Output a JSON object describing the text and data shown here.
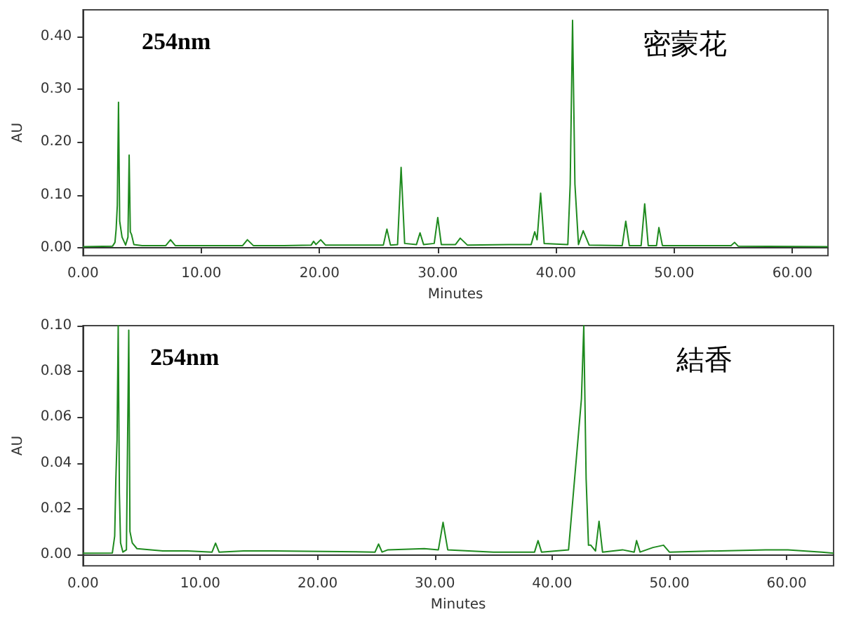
{
  "chart_data": [
    {
      "type": "line",
      "xlabel": "Minutes",
      "ylabel": "AU",
      "annotations": [
        "254nm",
        "密蒙花"
      ],
      "marker": "none",
      "xlim": [
        0,
        63
      ],
      "ylim": [
        -0.015,
        0.45
      ],
      "xticks": [
        {
          "value": 0,
          "label": "0.00"
        },
        {
          "value": 10,
          "label": "10.00"
        },
        {
          "value": 20,
          "label": "20.00"
        },
        {
          "value": 30,
          "label": "30.00"
        },
        {
          "value": 40,
          "label": "40.00"
        },
        {
          "value": 50,
          "label": "50.00"
        },
        {
          "value": 60,
          "label": "60.00"
        }
      ],
      "yticks": [
        {
          "value": 0,
          "label": "0.00"
        },
        {
          "value": 0.1,
          "label": "0.10"
        },
        {
          "value": 0.2,
          "label": "0.20"
        },
        {
          "value": 0.3,
          "label": "0.30"
        },
        {
          "value": 0.4,
          "label": "0.40"
        }
      ],
      "series": [
        {
          "color": "#1e8a1e",
          "x": [
            0,
            2.5,
            2.7,
            2.8,
            2.9,
            3.0,
            3.1,
            3.3,
            3.6,
            3.8,
            3.9,
            4.0,
            4.1,
            4.3,
            5,
            7,
            7.4,
            7.8,
            11,
            13.5,
            13.9,
            14.4,
            17,
            19.3,
            19.5,
            19.7,
            20.1,
            20.5,
            23,
            25.4,
            25.7,
            26.0,
            26.6,
            26.9,
            27.2,
            28.2,
            28.5,
            28.8,
            29.7,
            30.0,
            30.3,
            31.5,
            31.9,
            32.5,
            36,
            37.9,
            38.2,
            38.4,
            38.7,
            39.0,
            41.0,
            41.2,
            41.4,
            41.6,
            41.9,
            42.3,
            42.8,
            45.6,
            45.9,
            46.2,
            47.2,
            47.5,
            47.8,
            48.5,
            48.7,
            49.0,
            54.8,
            55.1,
            55.4,
            63
          ],
          "values": [
            0.002,
            0.003,
            0.01,
            0.035,
            0.08,
            0.275,
            0.05,
            0.02,
            0.005,
            0.02,
            0.175,
            0.03,
            0.025,
            0.006,
            0.004,
            0.004,
            0.015,
            0.004,
            0.004,
            0.004,
            0.015,
            0.004,
            0.004,
            0.005,
            0.012,
            0.006,
            0.015,
            0.005,
            0.005,
            0.005,
            0.035,
            0.005,
            0.006,
            0.152,
            0.008,
            0.006,
            0.028,
            0.006,
            0.008,
            0.057,
            0.006,
            0.006,
            0.018,
            0.005,
            0.006,
            0.006,
            0.03,
            0.015,
            0.103,
            0.008,
            0.006,
            0.12,
            0.43,
            0.12,
            0.006,
            0.032,
            0.005,
            0.004,
            0.05,
            0.004,
            0.004,
            0.083,
            0.004,
            0.004,
            0.038,
            0.004,
            0.004,
            0.01,
            0.003,
            0.002
          ]
        }
      ]
    },
    {
      "type": "line",
      "xlabel": "Minutes",
      "ylabel": "AU",
      "annotations": [
        "254nm",
        "結香"
      ],
      "marker": "none",
      "xlim": [
        0,
        64
      ],
      "ylim": [
        -0.005,
        0.1
      ],
      "xticks": [
        {
          "value": 0,
          "label": "0.00"
        },
        {
          "value": 10,
          "label": "10.00"
        },
        {
          "value": 20,
          "label": "20.00"
        },
        {
          "value": 30,
          "label": "30.00"
        },
        {
          "value": 40,
          "label": "40.00"
        },
        {
          "value": 50,
          "label": "50.00"
        },
        {
          "value": 60,
          "label": "60.00"
        }
      ],
      "yticks": [
        {
          "value": 0,
          "label": "0.00"
        },
        {
          "value": 0.02,
          "label": "0.02"
        },
        {
          "value": 0.04,
          "label": "0.04"
        },
        {
          "value": 0.06,
          "label": "0.06"
        },
        {
          "value": 0.08,
          "label": "0.08"
        },
        {
          "value": 0.1,
          "label": "0.10"
        }
      ],
      "series": [
        {
          "color": "#1e8a1e",
          "x": [
            0,
            2.5,
            2.7,
            2.8,
            2.9,
            3.0,
            3.1,
            3.2,
            3.4,
            3.7,
            3.9,
            4.0,
            4.2,
            4.6,
            6.8,
            8.9,
            11.0,
            11.3,
            11.6,
            13.7,
            16.2,
            24.9,
            25.2,
            25.5,
            26.0,
            29.1,
            30.3,
            30.7,
            31.1,
            35,
            38.5,
            38.8,
            39.1,
            41.4,
            42.5,
            42.7,
            42.9,
            43.1,
            43.3,
            43.7,
            44.0,
            44.3,
            46.0,
            47.0,
            47.2,
            47.5,
            48.6,
            49.5,
            50,
            58.2,
            60.1,
            63,
            64
          ],
          "values": [
            0.0005,
            0.0006,
            0.008,
            0.033,
            0.05,
            0.1,
            0.027,
            0.005,
            0.001,
            0.002,
            0.098,
            0.01,
            0.005,
            0.0025,
            0.0015,
            0.0015,
            0.001,
            0.0049,
            0.001,
            0.0015,
            0.0015,
            0.001,
            0.0045,
            0.001,
            0.002,
            0.0025,
            0.002,
            0.014,
            0.002,
            0.001,
            0.001,
            0.006,
            0.001,
            0.002,
            0.068,
            0.1,
            0.033,
            0.004,
            0.004,
            0.0015,
            0.0145,
            0.001,
            0.002,
            0.001,
            0.006,
            0.001,
            0.003,
            0.004,
            0.001,
            0.002,
            0.002,
            0.001,
            0.0005
          ]
        }
      ]
    }
  ]
}
